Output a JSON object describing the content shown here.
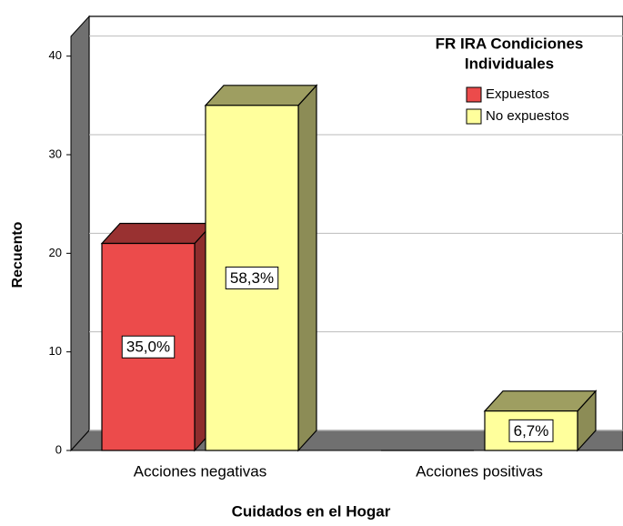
{
  "chart_data": {
    "type": "bar3d",
    "x_label": "Cuidados en el Hogar",
    "y_label": "Recuento",
    "legend_title": [
      "FR IRA Condiciones",
      "Individuales"
    ],
    "categories": [
      "Acciones negativas",
      "Acciones positivas"
    ],
    "series": [
      {
        "name": "Expuestos",
        "color": "#ec4b4b",
        "values": [
          21,
          0
        ],
        "percent_labels": [
          "35,0%",
          null
        ]
      },
      {
        "name": "No expuestos",
        "color": "#ffff9c",
        "values": [
          35,
          4
        ],
        "percent_labels": [
          "58,3%",
          "6,7%"
        ]
      }
    ],
    "ylim": [
      0,
      42
    ],
    "yticks": [
      0,
      10,
      20,
      30,
      40
    ],
    "grid": true
  }
}
